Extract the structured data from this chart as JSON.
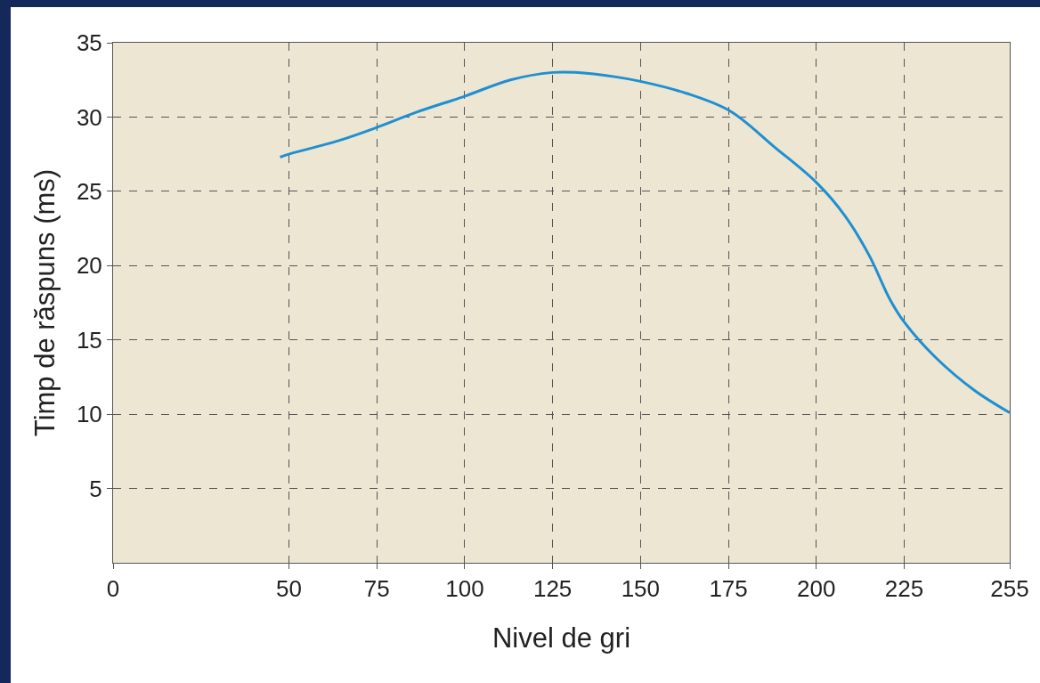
{
  "chart_data": {
    "type": "line",
    "xlabel": "Nivel de gri",
    "ylabel": "Timp de răspuns (ms)",
    "x": [
      47.5,
      50,
      64,
      75,
      86,
      100,
      113,
      125,
      131.5,
      143,
      150,
      163,
      175.5,
      188,
      200,
      208,
      215,
      221,
      225,
      234,
      245,
      255
    ],
    "series": [
      {
        "color": "#1f8fd1",
        "values": [
          27.3,
          27.5,
          28.4,
          29.3,
          30.3,
          31.4,
          32.5,
          33.0,
          33.0,
          32.7,
          32.4,
          31.6,
          30.4,
          28.0,
          25.6,
          23.4,
          20.7,
          17.7,
          16.2,
          13.8,
          11.6,
          10.1
        ]
      }
    ],
    "xlim": [
      0,
      255
    ],
    "ylim": [
      0,
      35
    ],
    "xticks": [
      0,
      50,
      75,
      100,
      125,
      150,
      175,
      200,
      225,
      255
    ],
    "yticks": [
      5,
      10,
      15,
      20,
      25,
      30,
      35
    ],
    "grid": true
  }
}
